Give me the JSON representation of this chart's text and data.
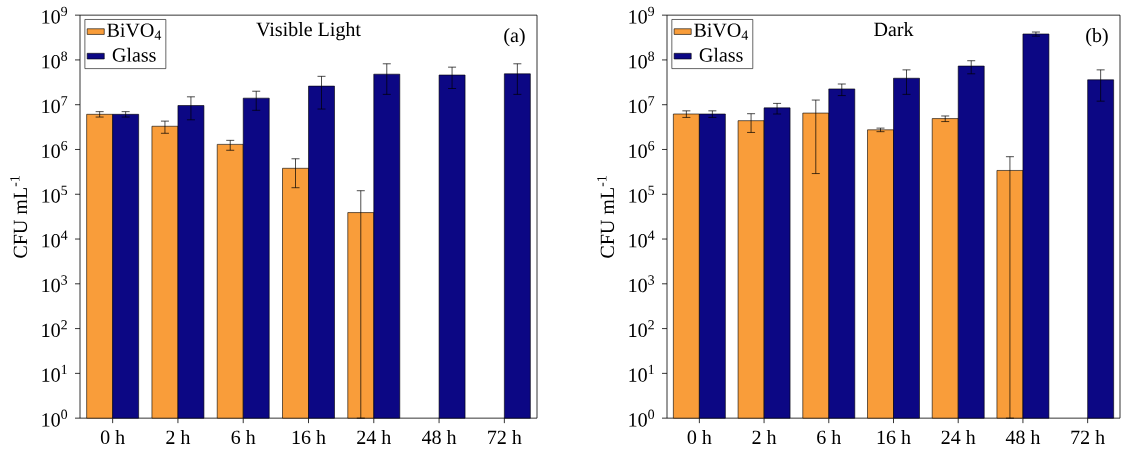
{
  "chart_data": [
    {
      "type": "bar",
      "title": "Visible Light",
      "ylabel": "CFU mL$^{-1}$",
      "annotations": [
        "(a)"
      ],
      "log": "y",
      "legend": "top left",
      "categories": [
        "0 h",
        "2 h",
        "6 h",
        "16 h",
        "24 h",
        "48 h",
        "72 h"
      ],
      "ylim": [
        1,
        1000000000
      ],
      "yticks": [
        {
          "value": 1,
          "label": "10$^{0}$"
        },
        {
          "value": 10,
          "label": "10$^{1}$"
        },
        {
          "value": 100,
          "label": "10$^{2}$"
        },
        {
          "value": 1000,
          "label": "10$^{3}$"
        },
        {
          "value": 10000,
          "label": "10$^{4}$"
        },
        {
          "value": 100000,
          "label": "10$^{5}$"
        },
        {
          "value": 1000000,
          "label": "10$^{6}$"
        },
        {
          "value": 10000000,
          "label": "10$^{7}$"
        },
        {
          "value": 100000000,
          "label": "10$^{8}$"
        },
        {
          "value": 1000000000,
          "label": "10$^{9}$"
        }
      ],
      "series": [
        {
          "name": "BiVO$_{4}$",
          "color": "#f99d3a",
          "values": [
            6100000,
            3300000,
            1300000,
            380000,
            39000,
            null,
            null
          ],
          "errors": [
            [
              5300000,
              7000000
            ],
            [
              2300000,
              4300000
            ],
            [
              960000,
              1600000
            ],
            [
              140000,
              620000
            ],
            [
              1,
              120000
            ],
            null,
            null
          ]
        },
        {
          "name": "Glass",
          "color": "#0c0784",
          "values": [
            6100000,
            9600000,
            14000000,
            26000000,
            48000000,
            46000000,
            49000000
          ],
          "errors": [
            [
              5300000,
              7000000
            ],
            [
              4600000,
              15000000
            ],
            [
              7500000,
              20000000
            ],
            [
              8000000,
              43000000
            ],
            [
              17000000,
              82000000
            ],
            [
              23000000,
              69000000
            ],
            [
              17000000,
              82000000
            ]
          ]
        }
      ]
    },
    {
      "type": "bar",
      "title": "Dark",
      "ylabel": "CFU mL$^{-1}$",
      "annotations": [
        "(b)"
      ],
      "log": "y",
      "legend": "top left",
      "categories": [
        "0 h",
        "2 h",
        "6 h",
        "16 h",
        "24 h",
        "48 h",
        "72 h"
      ],
      "ylim": [
        1,
        1000000000
      ],
      "yticks": [
        {
          "value": 1,
          "label": "10$^{0}$"
        },
        {
          "value": 10,
          "label": "10$^{1}$"
        },
        {
          "value": 100,
          "label": "10$^{2}$"
        },
        {
          "value": 1000,
          "label": "10$^{3}$"
        },
        {
          "value": 10000,
          "label": "10$^{4}$"
        },
        {
          "value": 100000,
          "label": "10$^{5}$"
        },
        {
          "value": 1000000,
          "label": "10$^{6}$"
        },
        {
          "value": 10000000,
          "label": "10$^{7}$"
        },
        {
          "value": 100000000,
          "label": "10$^{8}$"
        },
        {
          "value": 1000000000,
          "label": "10$^{9}$"
        }
      ],
      "series": [
        {
          "name": "BiVO$_{4}$",
          "color": "#f99d3a",
          "values": [
            6200000,
            4400000,
            6500000,
            2750000,
            4900000,
            340000,
            null
          ],
          "errors": [
            [
              5200000,
              7300000
            ],
            [
              2400000,
              6300000
            ],
            [
              290000,
              12700000
            ],
            [
              2500000,
              3000000
            ],
            [
              4200000,
              5600000
            ],
            [
              1,
              690000
            ],
            null
          ]
        },
        {
          "name": "Glass",
          "color": "#0c0784",
          "values": [
            6200000,
            8500000,
            22500000,
            39000000,
            73000000,
            380000000,
            36000000
          ],
          "errors": [
            [
              5200000,
              7300000
            ],
            [
              6200000,
              10700000
            ],
            [
              16000000,
              29000000
            ],
            [
              17000000,
              60000000
            ],
            [
              49000000,
              96000000
            ],
            [
              340000000,
              420000000
            ],
            [
              12000000,
              60000000
            ]
          ]
        }
      ]
    }
  ]
}
